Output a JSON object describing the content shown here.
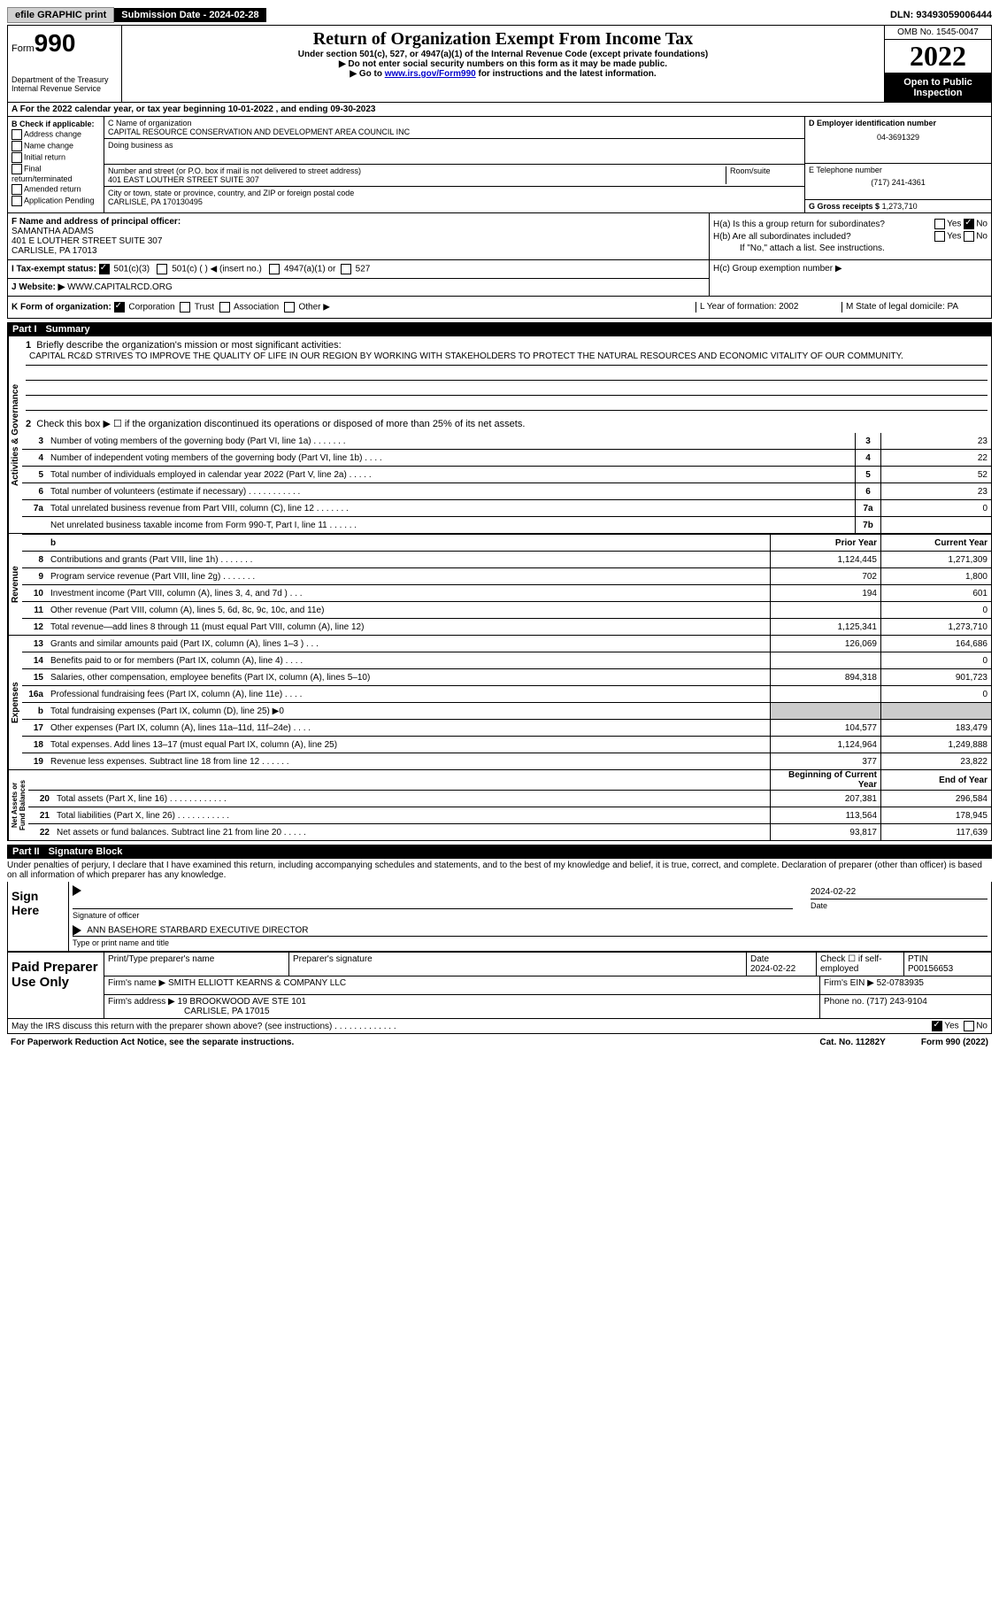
{
  "topbar": {
    "efile": "efile GRAPHIC print",
    "subdate_label": "Submission Date - 2024-02-28",
    "dln": "DLN: 93493059006444"
  },
  "header": {
    "form_label": "Form",
    "form_num": "990",
    "dept": "Department of the Treasury",
    "irs": "Internal Revenue Service",
    "title": "Return of Organization Exempt From Income Tax",
    "sub1": "Under section 501(c), 527, or 4947(a)(1) of the Internal Revenue Code (except private foundations)",
    "sub2": "▶ Do not enter social security numbers on this form as it may be made public.",
    "sub3_pre": "▶ Go to ",
    "sub3_link": "www.irs.gov/Form990",
    "sub3_post": " for instructions and the latest information.",
    "omb": "OMB No. 1545-0047",
    "year": "2022",
    "open": "Open to Public Inspection"
  },
  "rowA": "A For the 2022 calendar year, or tax year beginning 10-01-2022     , and ending 09-30-2023",
  "colB": {
    "header": "B Check if applicable:",
    "items": [
      "Address change",
      "Name change",
      "Initial return",
      "Final return/terminated",
      "Amended return",
      "Application Pending"
    ]
  },
  "colC": {
    "name_label": "C Name of organization",
    "name": "CAPITAL RESOURCE CONSERVATION AND DEVELOPMENT AREA COUNCIL INC",
    "dba_label": "Doing business as",
    "addr_label": "Number and street (or P.O. box if mail is not delivered to street address)",
    "addr": "401 EAST LOUTHER STREET SUITE 307",
    "room_label": "Room/suite",
    "city_label": "City or town, state or province, country, and ZIP or foreign postal code",
    "city": "CARLISLE, PA  170130495"
  },
  "colD": {
    "ein_label": "D Employer identification number",
    "ein": "04-3691329",
    "tel_label": "E Telephone number",
    "tel": "(717) 241-4361",
    "gross_label": "G Gross receipts $",
    "gross": "1,273,710"
  },
  "colF": {
    "label": "F Name and address of principal officer:",
    "name": "SAMANTHA ADAMS",
    "addr1": "401 E LOUTHER STREET SUITE 307",
    "addr2": "CARLISLE, PA  17013"
  },
  "colH": {
    "a": "H(a)  Is this a group return for subordinates?",
    "b": "H(b)  Are all subordinates included?",
    "b2": "If \"No,\" attach a list. See instructions.",
    "c": "H(c)  Group exemption number ▶"
  },
  "rowI": {
    "label": "I  Tax-exempt status:",
    "opts": [
      "501(c)(3)",
      "501(c) (  ) ◀ (insert no.)",
      "4947(a)(1) or",
      "527"
    ]
  },
  "rowJ": {
    "label": "J  Website: ▶",
    "val": "WWW.CAPITALRCD.ORG"
  },
  "rowK": {
    "label": "K Form of organization:",
    "opts": [
      "Corporation",
      "Trust",
      "Association",
      "Other ▶"
    ],
    "L": "L Year of formation: 2002",
    "M": "M State of legal domicile: PA"
  },
  "part1": {
    "num": "Part I",
    "title": "Summary"
  },
  "summary": {
    "l1": "Briefly describe the organization's mission or most significant activities:",
    "mission": "CAPITAL RC&D STRIVES TO IMPROVE THE QUALITY OF LIFE IN OUR REGION BY WORKING WITH STAKEHOLDERS TO PROTECT THE NATURAL RESOURCES AND ECONOMIC VITALITY OF OUR COMMUNITY.",
    "l2": "Check this box ▶ ☐  if the organization discontinued its operations or disposed of more than 25% of its net assets.",
    "lines": [
      {
        "n": "3",
        "d": "Number of voting members of the governing body (Part VI, line 1a)   .    .    .    .    .    .    .",
        "b": "3",
        "v": "23"
      },
      {
        "n": "4",
        "d": "Number of independent voting members of the governing body (Part VI, line 1b)   .    .    .    .",
        "b": "4",
        "v": "22"
      },
      {
        "n": "5",
        "d": "Total number of individuals employed in calendar year 2022 (Part V, line 2a)   .    .    .    .    .",
        "b": "5",
        "v": "52"
      },
      {
        "n": "6",
        "d": "Total number of volunteers (estimate if necessary)    .    .    .    .    .    .    .    .    .    .    .",
        "b": "6",
        "v": "23"
      },
      {
        "n": "7a",
        "d": "Total unrelated business revenue from Part VIII, column (C), line 12    .    .    .    .    .    .    .",
        "b": "7a",
        "v": "0"
      },
      {
        "n": "",
        "d": "Net unrelated business taxable income from Form 990-T, Part I, line 11   .    .    .    .    .    .",
        "b": "7b",
        "v": ""
      }
    ],
    "prior": "Prior Year",
    "current": "Current Year",
    "rev": [
      {
        "n": "8",
        "d": "Contributions and grants (Part VIII, line 1h)    .    .    .    .    .    .    .",
        "p": "1,124,445",
        "c": "1,271,309"
      },
      {
        "n": "9",
        "d": "Program service revenue (Part VIII, line 2g)    .    .    .    .    .    .    .",
        "p": "702",
        "c": "1,800"
      },
      {
        "n": "10",
        "d": "Investment income (Part VIII, column (A), lines 3, 4, and 7d )    .    .    .",
        "p": "194",
        "c": "601"
      },
      {
        "n": "11",
        "d": "Other revenue (Part VIII, column (A), lines 5, 6d, 8c, 9c, 10c, and 11e)",
        "p": "",
        "c": "0"
      },
      {
        "n": "12",
        "d": "Total revenue—add lines 8 through 11 (must equal Part VIII, column (A), line 12)",
        "p": "1,125,341",
        "c": "1,273,710"
      }
    ],
    "exp": [
      {
        "n": "13",
        "d": "Grants and similar amounts paid (Part IX, column (A), lines 1–3 )   .    .    .",
        "p": "126,069",
        "c": "164,686"
      },
      {
        "n": "14",
        "d": "Benefits paid to or for members (Part IX, column (A), line 4)   .    .    .    .",
        "p": "",
        "c": "0"
      },
      {
        "n": "15",
        "d": "Salaries, other compensation, employee benefits (Part IX, column (A), lines 5–10)",
        "p": "894,318",
        "c": "901,723"
      },
      {
        "n": "16a",
        "d": "Professional fundraising fees (Part IX, column (A), line 11e)   .    .    .    .",
        "p": "",
        "c": "0"
      },
      {
        "n": "b",
        "d": "Total fundraising expenses (Part IX, column (D), line 25) ▶0",
        "p": "GRAY",
        "c": "GRAY"
      },
      {
        "n": "17",
        "d": "Other expenses (Part IX, column (A), lines 11a–11d, 11f–24e)   .    .    .    .",
        "p": "104,577",
        "c": "183,479"
      },
      {
        "n": "18",
        "d": "Total expenses. Add lines 13–17 (must equal Part IX, column (A), line 25)",
        "p": "1,124,964",
        "c": "1,249,888"
      },
      {
        "n": "19",
        "d": "Revenue less expenses. Subtract line 18 from line 12   .    .    .    .    .    .",
        "p": "377",
        "c": "23,822"
      }
    ],
    "bcy": "Beginning of Current Year",
    "eoy": "End of Year",
    "net": [
      {
        "n": "20",
        "d": "Total assets (Part X, line 16)   .    .    .    .    .    .    .    .    .    .    .    .",
        "p": "207,381",
        "c": "296,584"
      },
      {
        "n": "21",
        "d": "Total liabilities (Part X, line 26)   .    .    .    .    .    .    .    .    .    .    .",
        "p": "113,564",
        "c": "178,945"
      },
      {
        "n": "22",
        "d": "Net assets or fund balances. Subtract line 21 from line 20   .    .    .    .    .",
        "p": "93,817",
        "c": "117,639"
      }
    ]
  },
  "part2": {
    "num": "Part II",
    "title": "Signature Block"
  },
  "sig": {
    "penalty": "Under penalties of perjury, I declare that I have examined this return, including accompanying schedules and statements, and to the best of my knowledge and belief, it is true, correct, and complete. Declaration of preparer (other than officer) is based on all information of which preparer has any knowledge.",
    "sign_here": "Sign Here",
    "sig_officer": "Signature of officer",
    "sig_date": "2024-02-22",
    "date_label": "Date",
    "name": "ANN BASEHORE STARBARD  EXECUTIVE DIRECTOR",
    "name_label": "Type or print name and title"
  },
  "paid": {
    "label": "Paid Preparer Use Only",
    "print_label": "Print/Type preparer's name",
    "sig_label": "Preparer's signature",
    "date_label": "Date",
    "date": "2024-02-22",
    "check_label": "Check ☐ if self-employed",
    "ptin_label": "PTIN",
    "ptin": "P00156653",
    "firm_name_label": "Firm's name    ▶",
    "firm_name": "SMITH ELLIOTT KEARNS & COMPANY LLC",
    "firm_ein_label": "Firm's EIN ▶",
    "firm_ein": "52-0783935",
    "firm_addr_label": "Firm's address ▶",
    "firm_addr1": "19 BROOKWOOD AVE STE 101",
    "firm_addr2": "CARLISLE, PA  17015",
    "phone_label": "Phone no.",
    "phone": "(717) 243-9104"
  },
  "footer": {
    "discuss": "May the IRS discuss this return with the preparer shown above? (see instructions)   .    .    .    .    .    .    .    .    .    .    .    .    .",
    "pra": "For Paperwork Reduction Act Notice, see the separate instructions.",
    "cat": "Cat. No. 11282Y",
    "form": "Form 990 (2022)"
  }
}
